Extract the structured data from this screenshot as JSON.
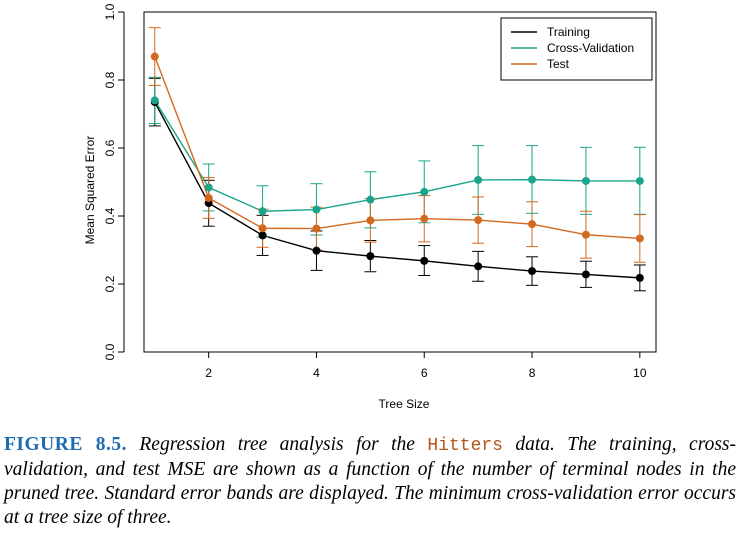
{
  "chart_data": {
    "type": "line",
    "xlabel": "Tree Size",
    "ylabel": "Mean Squared Error",
    "xlim": [
      0.8,
      10.3
    ],
    "ylim": [
      0.0,
      1.0
    ],
    "xticks": [
      2,
      4,
      6,
      8,
      10
    ],
    "xtick_labels": [
      "2",
      "4",
      "6",
      "8",
      "10"
    ],
    "yticks": [
      0.0,
      0.2,
      0.4,
      0.6,
      0.8,
      1.0
    ],
    "ytick_labels": [
      "0.0",
      "0.2",
      "0.4",
      "0.6",
      "0.8",
      "1.0"
    ],
    "grid": false,
    "legend_position": "top-right",
    "x": [
      1,
      2,
      3,
      4,
      5,
      6,
      7,
      8,
      9,
      10
    ],
    "series": [
      {
        "name": "Training",
        "color": "#000000",
        "values": [
          0.735,
          0.438,
          0.343,
          0.298,
          0.282,
          0.268,
          0.252,
          0.238,
          0.228,
          0.218
        ],
        "err_low": [
          0.665,
          0.37,
          0.284,
          0.24,
          0.236,
          0.225,
          0.208,
          0.196,
          0.19,
          0.18
        ],
        "err_high": [
          0.805,
          0.505,
          0.402,
          0.356,
          0.328,
          0.313,
          0.296,
          0.28,
          0.267,
          0.256
        ]
      },
      {
        "name": "Cross-Validation",
        "color": "#1aa58a",
        "values": [
          0.74,
          0.484,
          0.414,
          0.419,
          0.448,
          0.471,
          0.506,
          0.507,
          0.503,
          0.503
        ],
        "err_low": [
          0.672,
          0.415,
          0.338,
          0.344,
          0.365,
          0.38,
          0.405,
          0.408,
          0.405,
          0.405
        ],
        "err_high": [
          0.808,
          0.553,
          0.489,
          0.495,
          0.53,
          0.562,
          0.607,
          0.607,
          0.602,
          0.602
        ]
      },
      {
        "name": "Test",
        "color": "#d2691e",
        "values": [
          0.869,
          0.453,
          0.364,
          0.363,
          0.387,
          0.392,
          0.388,
          0.376,
          0.345,
          0.334
        ],
        "err_low": [
          0.784,
          0.393,
          0.308,
          0.3,
          0.323,
          0.324,
          0.32,
          0.31,
          0.276,
          0.264
        ],
        "err_high": [
          0.954,
          0.513,
          0.42,
          0.426,
          0.451,
          0.46,
          0.456,
          0.442,
          0.414,
          0.404
        ]
      }
    ]
  },
  "caption": {
    "label": "FIGURE 8.5.",
    "text_before": " Regression tree analysis for the ",
    "code": "Hitters",
    "text_after": " data. The training, cross-validation, and test MSE are shown as a function of the number of terminal nodes in the pruned tree. Standard error bands are displayed. The minimum cross-validation error occurs at a tree size of three."
  }
}
